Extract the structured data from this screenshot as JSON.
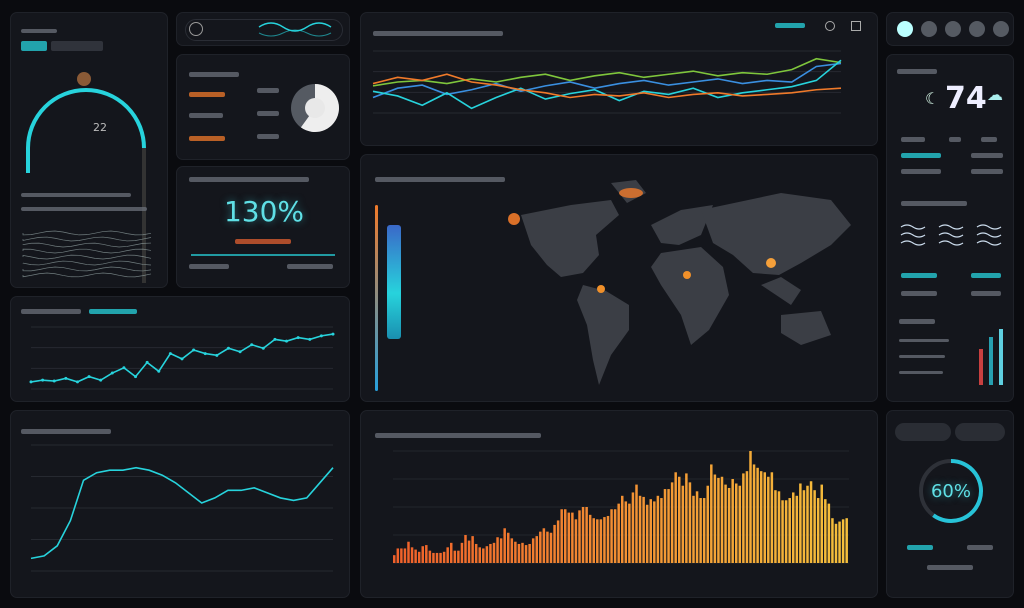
{
  "colors": {
    "background": "#0a0b0f",
    "panel": "#14161c",
    "accent_cyan": "#27d3dc",
    "accent_orange": "#f07a2a",
    "accent_yellow": "#f2b63a",
    "series_green": "#7fc63c",
    "series_blue": "#3a8fe0"
  },
  "gauge": {
    "value_label": "22",
    "arc_fraction": 0.75
  },
  "efficiency": {
    "value": "130%",
    "progress": 1.0
  },
  "donut": {
    "fraction": 0.6
  },
  "weather": {
    "temperature": "74",
    "icons": [
      "cloud-icon",
      "rain-icon",
      "wind-icon",
      "sun-icon",
      "moon-icon"
    ]
  },
  "ring": {
    "value": "60%",
    "fraction": 0.6
  },
  "chart_data": [
    {
      "type": "line",
      "series": [
        {
          "color": "#7fc63c",
          "values": [
            55,
            60,
            62,
            58,
            64,
            60,
            66,
            70,
            62,
            68,
            72,
            66,
            70,
            74,
            68,
            72,
            70,
            76,
            90,
            85
          ]
        },
        {
          "color": "#3a8fe0",
          "values": [
            40,
            52,
            56,
            44,
            50,
            58,
            48,
            55,
            60,
            52,
            58,
            62,
            56,
            60,
            64,
            58,
            62,
            60,
            80,
            84
          ]
        },
        {
          "color": "#27d3dc",
          "values": [
            48,
            42,
            30,
            46,
            26,
            40,
            52,
            38,
            45,
            50,
            36,
            48,
            44,
            52,
            40,
            46,
            50,
            54,
            62,
            88
          ]
        },
        {
          "color": "#f07a2a",
          "values": [
            58,
            66,
            62,
            70,
            60,
            56,
            50,
            46,
            40,
            44,
            42,
            46,
            40,
            44,
            46,
            42,
            44,
            46,
            50,
            52
          ]
        }
      ]
    },
    {
      "type": "line",
      "series": [
        {
          "color": "#27d3dc",
          "values": [
            8,
            10,
            9,
            12,
            8,
            14,
            10,
            18,
            24,
            14,
            30,
            20,
            40,
            34,
            44,
            40,
            38,
            46,
            42,
            50,
            46,
            56,
            54,
            58,
            56,
            60,
            62
          ]
        }
      ]
    },
    {
      "type": "line",
      "series": [
        {
          "color": "#27d3dc",
          "values": [
            10,
            12,
            20,
            40,
            72,
            78,
            80,
            80,
            82,
            80,
            76,
            70,
            62,
            54,
            58,
            64,
            64,
            66,
            62,
            58,
            56,
            58,
            70,
            82
          ]
        }
      ]
    },
    {
      "type": "bar",
      "color_start": "#f0602a",
      "color_end": "#f5c03c",
      "ylim": [
        0,
        100
      ],
      "values": [
        7,
        13,
        13,
        13,
        19,
        14,
        12,
        10,
        15,
        16,
        11,
        9,
        9,
        9,
        10,
        14,
        18,
        11,
        11,
        18,
        25,
        20,
        24,
        17,
        14,
        13,
        15,
        17,
        18,
        23,
        22,
        31,
        27,
        22,
        19,
        17,
        18,
        16,
        17,
        22,
        24,
        28,
        31,
        28,
        27,
        34,
        38,
        48,
        48,
        45,
        45,
        39,
        47,
        50,
        50,
        43,
        40,
        39,
        39,
        41,
        42,
        48,
        48,
        53,
        60,
        55,
        53,
        63,
        70,
        60,
        59,
        52,
        57,
        55,
        60,
        58,
        66,
        66,
        72,
        81,
        77,
        69,
        80,
        72,
        60,
        64,
        58,
        58,
        69,
        88,
        79,
        76,
        77,
        70,
        67,
        75,
        71,
        69,
        80,
        82,
        100,
        88,
        85,
        82,
        81,
        77,
        81,
        65,
        64,
        56,
        56,
        58,
        63,
        60,
        71,
        65,
        69,
        73,
        65,
        58,
        70,
        57,
        53,
        40,
        35,
        37,
        39,
        40
      ]
    }
  ]
}
